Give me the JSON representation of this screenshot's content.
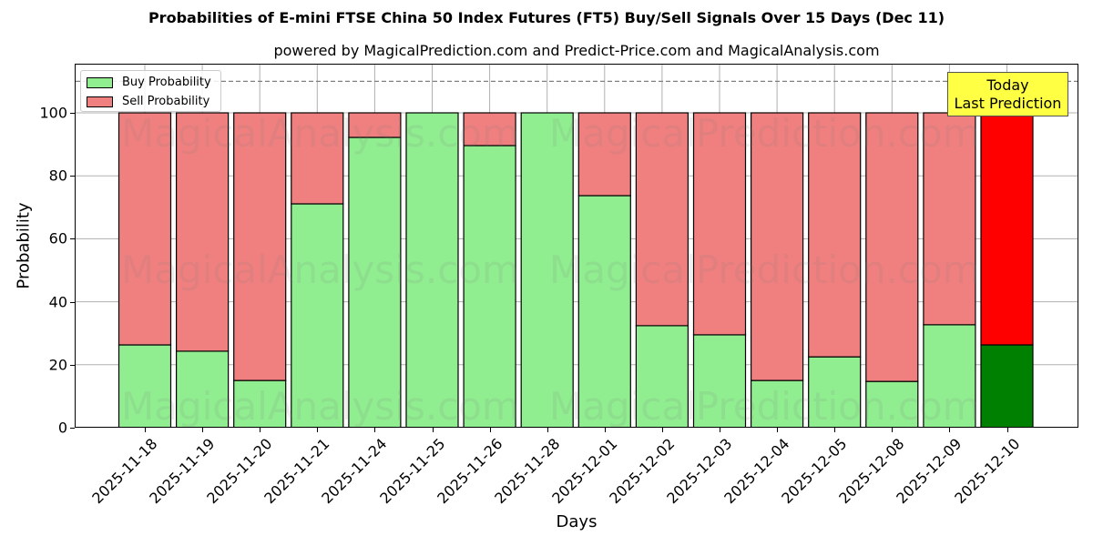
{
  "header": {
    "title": "Probabilities of E-mini FTSE China 50 Index Futures (FT5) Buy/Sell Signals Over 15 Days (Dec 11)",
    "subtitle": "powered by MagicalPrediction.com and Predict-Price.com and MagicalAnalysis.com"
  },
  "legend": {
    "buy_label": "Buy Probability",
    "sell_label": "Sell Probability"
  },
  "annotation": {
    "line1": "Today",
    "line2": "Last Prediction"
  },
  "watermarks": [
    "MagicalAnalysis.com",
    "MagicalPrediction.com"
  ],
  "colors": {
    "buy": "#90ee90",
    "sell": "#f08080",
    "buy_today": "#008000",
    "sell_today": "#ff0000",
    "annotation_bg": "#ffff44",
    "reference_line": "#808080"
  },
  "chart_data": {
    "type": "bar",
    "stacked": true,
    "title": "Probabilities of E-mini FTSE China 50 Index Futures (FT5) Buy/Sell Signals Over 15 Days (Dec 11)",
    "subtitle": "powered by MagicalPrediction.com and Predict-Price.com and MagicalAnalysis.com",
    "xlabel": "Days",
    "ylabel": "Probability",
    "ylim": [
      0,
      115
    ],
    "yticks": [
      0,
      20,
      40,
      60,
      80,
      100
    ],
    "grid": true,
    "legend_position": "upper left",
    "reference_line": {
      "y": 110,
      "style": "dashed"
    },
    "categories": [
      "2025-11-18",
      "2025-11-19",
      "2025-11-20",
      "2025-11-21",
      "2025-11-24",
      "2025-11-25",
      "2025-11-26",
      "2025-11-28",
      "2025-12-01",
      "2025-12-02",
      "2025-12-03",
      "2025-12-04",
      "2025-12-05",
      "2025-12-08",
      "2025-12-09",
      "2025-12-10"
    ],
    "series": [
      {
        "name": "Buy Probability",
        "values": [
          26.3,
          24.3,
          15.0,
          71.1,
          92.2,
          100.0,
          89.6,
          100.0,
          73.7,
          32.4,
          29.5,
          15.0,
          22.5,
          14.7,
          32.7,
          26.3
        ]
      },
      {
        "name": "Sell Probability",
        "values": [
          73.7,
          75.7,
          85.0,
          28.9,
          7.8,
          0.0,
          10.4,
          0.0,
          26.3,
          67.6,
          70.5,
          85.0,
          77.5,
          85.3,
          67.3,
          73.7
        ]
      }
    ],
    "highlight": {
      "index": 15,
      "label": "Today\nLast Prediction"
    }
  }
}
